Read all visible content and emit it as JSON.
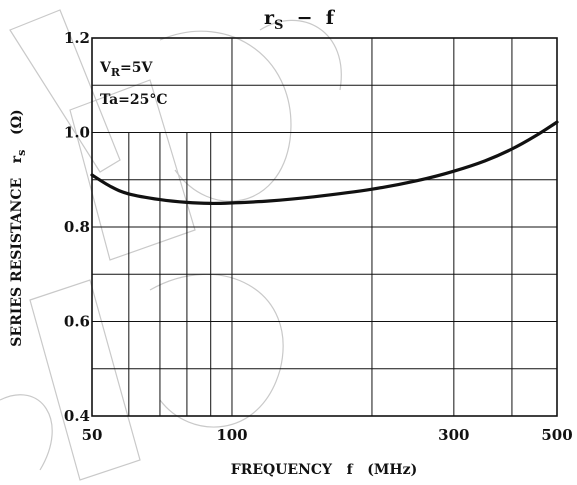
{
  "chart_data": {
    "type": "line",
    "title": {
      "main": "r",
      "sub": "S",
      "rest": "  −  f"
    },
    "xlabel": "FREQUENCY   f   (MHz)",
    "ylabel": "SERIES RESISTANCE   r",
    "ylabel_sub": "s",
    "ylabel_unit": "(Ω)",
    "xscale": "log",
    "xlim": [
      50,
      500
    ],
    "ylim": [
      0.4,
      1.2
    ],
    "xticks": [
      {
        "value": 50,
        "label": "50"
      },
      {
        "value": 100,
        "label": "100"
      },
      {
        "value": 300,
        "label": "300"
      },
      {
        "value": 500,
        "label": "500"
      }
    ],
    "yticks": [
      {
        "value": 0.4,
        "label": "0.4"
      },
      {
        "value": 0.6,
        "label": "0.6"
      },
      {
        "value": 0.8,
        "label": "0.8"
      },
      {
        "value": 1.0,
        "label": "1.0"
      },
      {
        "value": 1.2,
        "label": "1.2"
      }
    ],
    "grid": true,
    "annotations": [
      {
        "text": "V",
        "sub": "R",
        "rest": "=5V"
      },
      {
        "text": "Ta=25°C",
        "sub": "",
        "rest": ""
      }
    ],
    "series": [
      {
        "x": [
          50,
          55,
          60,
          70,
          80,
          90,
          100,
          120,
          150,
          200,
          250,
          300,
          350,
          400,
          450,
          500
        ],
        "y": [
          0.91,
          0.885,
          0.87,
          0.858,
          0.852,
          0.85,
          0.851,
          0.855,
          0.864,
          0.88,
          0.898,
          0.918,
          0.94,
          0.965,
          0.993,
          1.022
        ]
      }
    ]
  }
}
